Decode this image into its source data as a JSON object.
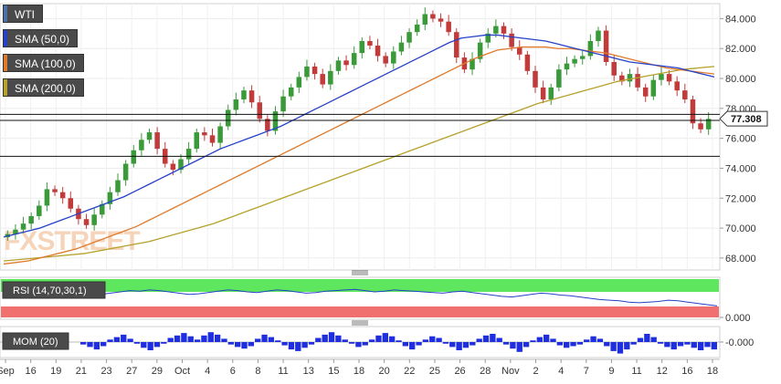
{
  "chart_data": [
    {
      "type": "candlestick",
      "symbol": "WTI",
      "legend": [
        {
          "label": "WTI",
          "color": "#4d6fa8"
        },
        {
          "label": "SMA (50,0)",
          "color": "#2441c8"
        },
        {
          "label": "SMA (100,0)",
          "color": "#e07a2b"
        },
        {
          "label": "SMA (200,0)",
          "color": "#b5a12a"
        }
      ],
      "y_ticks": [
        "84.000",
        "82.000",
        "80.000",
        "78.000",
        "76.000",
        "74.000",
        "72.000",
        "70.000",
        "68.000"
      ],
      "ylim": [
        67.2,
        85.0
      ],
      "last_price": "77.308",
      "horizontal_levels": [
        77.6,
        77.2,
        74.8
      ],
      "x_tick_labels": [
        "Sep",
        "16",
        "19",
        "21",
        "23",
        "27",
        "29",
        "Oct",
        "4",
        "6",
        "8",
        "11",
        "13",
        "15",
        "18",
        "20",
        "22",
        "25",
        "26",
        "28",
        "Nov",
        "2",
        "4",
        "7",
        "9",
        "11",
        "12",
        "16",
        "18"
      ],
      "watermark": "FXSTREET",
      "closes": [
        69.6,
        69.9,
        70.3,
        70.8,
        71.5,
        72.6,
        72.4,
        72.0,
        71.3,
        70.6,
        70.2,
        70.9,
        71.6,
        72.4,
        73.2,
        74.3,
        75.2,
        75.9,
        76.4,
        75.3,
        74.3,
        73.9,
        74.6,
        75.3,
        76.4,
        76.2,
        75.7,
        76.8,
        77.9,
        78.6,
        79.2,
        78.4,
        77.3,
        76.5,
        77.8,
        78.8,
        79.4,
        80.1,
        80.8,
        80.3,
        79.6,
        80.5,
        81.2,
        80.9,
        81.7,
        82.5,
        82.2,
        81.5,
        81.0,
        81.8,
        82.4,
        83.1,
        83.6,
        84.3,
        84.0,
        83.8,
        83.1,
        81.4,
        80.6,
        81.3,
        82.4,
        83.0,
        83.5,
        83.0,
        82.1,
        81.6,
        80.5,
        79.4,
        78.6,
        79.4,
        80.6,
        81.0,
        81.3,
        81.5,
        82.5,
        83.2,
        81.1,
        80.2,
        79.8,
        80.3,
        79.4,
        78.8,
        79.9,
        80.3,
        79.8,
        79.2,
        78.6,
        77.0,
        76.6,
        77.3
      ],
      "sma50": [
        69.4,
        69.6,
        69.8,
        70.0,
        70.3,
        70.6,
        70.9,
        71.2,
        71.5,
        71.8,
        72.1,
        72.5,
        72.9,
        73.3,
        73.7,
        74.1,
        74.5,
        74.9,
        75.3,
        75.6,
        75.9,
        76.2,
        76.5,
        76.8,
        77.2,
        77.6,
        78.0,
        78.4,
        78.8,
        79.2,
        79.6,
        80.0,
        80.4,
        80.8,
        81.2,
        81.6,
        82.0,
        82.4,
        82.7,
        82.8,
        82.9,
        82.9,
        82.8,
        82.7,
        82.6,
        82.5,
        82.3,
        82.1,
        81.9,
        81.7,
        81.5,
        81.3,
        81.1,
        81.0,
        80.9,
        80.8,
        80.7,
        80.5,
        80.3,
        80.1
      ],
      "sma100": [
        67.6,
        67.7,
        67.8,
        68.0,
        68.2,
        68.4,
        68.6,
        68.9,
        69.2,
        69.5,
        69.8,
        70.1,
        70.5,
        70.9,
        71.3,
        71.7,
        72.1,
        72.5,
        72.9,
        73.3,
        73.7,
        74.1,
        74.5,
        74.9,
        75.3,
        75.7,
        76.1,
        76.5,
        76.9,
        77.3,
        77.7,
        78.1,
        78.5,
        78.9,
        79.3,
        79.7,
        80.1,
        80.5,
        80.9,
        81.3,
        81.6,
        81.9,
        82.0,
        82.1,
        82.1,
        82.1,
        82.0,
        82.0,
        81.9,
        81.8,
        81.7,
        81.5,
        81.3,
        81.1,
        80.9,
        80.7,
        80.6,
        80.5,
        80.4,
        80.3
      ],
      "sma200": [
        67.8,
        67.9,
        68.0,
        68.1,
        68.2,
        68.3,
        68.5,
        68.7,
        68.9,
        69.1,
        69.4,
        69.7,
        70.0,
        70.3,
        70.7,
        71.1,
        71.5,
        71.9,
        72.3,
        72.7,
        73.1,
        73.5,
        73.9,
        74.3,
        74.7,
        75.1,
        75.5,
        75.9,
        76.3,
        76.7,
        77.1,
        77.5,
        77.9,
        78.3,
        78.6,
        78.9,
        79.2,
        79.5,
        79.8,
        80.0,
        80.2,
        80.4,
        80.6,
        80.7,
        80.8
      ],
      "ohlc_note": "",
      "title": ""
    },
    {
      "type": "line",
      "label": "RSI (14,70,30,1)",
      "overbought_color": "#5ee65e",
      "oversold_color": "#f07070",
      "values": [
        55,
        57,
        54,
        56,
        58,
        60,
        59,
        57,
        55,
        53,
        56,
        58,
        60,
        62,
        61,
        63,
        62,
        60,
        58,
        56,
        57,
        59,
        61,
        63,
        62,
        60,
        59,
        61,
        63,
        62,
        60,
        58,
        59,
        61,
        62,
        63,
        64,
        62,
        60,
        61,
        63,
        62,
        61,
        60,
        59,
        58,
        60,
        61,
        59,
        57,
        55,
        53,
        52,
        54,
        56,
        58,
        57,
        55,
        54,
        52,
        50,
        48,
        47,
        46,
        44,
        43,
        44,
        45,
        47,
        46,
        44,
        42,
        40,
        38
      ],
      "y_tick": "0.000"
    },
    {
      "type": "bar",
      "label": "MOM (20)",
      "y_tick": "-0.000",
      "values": [
        -0.3,
        -0.6,
        -0.9,
        -0.5,
        0.3,
        0.6,
        0.9,
        0.4,
        -0.2,
        -0.7,
        -1.0,
        -0.6,
        -0.2,
        0.5,
        0.8,
        1.1,
        0.7,
        0.3,
        0.8,
        1.2,
        0.9,
        0.4,
        -0.3,
        -0.6,
        -0.8,
        -0.5,
        0.4,
        0.9,
        0.6,
        0.2,
        -0.4,
        -0.9,
        -1.1,
        -0.7,
        -0.3,
        0.5,
        0.9,
        1.2,
        0.8,
        0.3,
        -0.2,
        -0.6,
        -0.4,
        0.3,
        0.8,
        1.1,
        0.7,
        0.2,
        -0.5,
        -0.9,
        -0.4,
        0.3,
        0.7,
        0.5,
        -0.2,
        -0.6,
        -1.0,
        -0.7,
        -0.4,
        0.4,
        0.8,
        1.0,
        0.5,
        -0.3,
        -0.8,
        -1.2,
        -0.6,
        0.2,
        0.6,
        0.9,
        0.4,
        -0.4,
        -0.7,
        -0.5,
        -0.3,
        0.3,
        0.7,
        0.4,
        -0.5,
        -1.1,
        -1.4,
        -0.9,
        -0.3,
        0.5,
        1.0,
        0.6,
        -0.2,
        -0.6,
        -0.9,
        -0.5,
        -0.3,
        -0.7,
        -1.0,
        -0.6,
        -0.9
      ]
    }
  ]
}
